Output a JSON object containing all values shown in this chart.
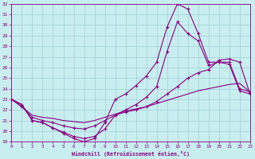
{
  "bg_color": "#c8eef0",
  "line_color": "#880080",
  "xlabel": "Windchill (Refroidissement éolien,°C)",
  "xlim": [
    0,
    23
  ],
  "ylim": [
    19,
    32
  ],
  "xticks": [
    0,
    1,
    2,
    3,
    4,
    5,
    6,
    7,
    8,
    9,
    10,
    11,
    12,
    13,
    14,
    15,
    16,
    17,
    18,
    19,
    20,
    21,
    22,
    23
  ],
  "yticks": [
    19,
    20,
    21,
    22,
    23,
    24,
    25,
    26,
    27,
    28,
    29,
    30,
    31,
    32
  ],
  "line1_x": [
    0,
    1,
    2,
    3,
    4,
    5,
    6,
    7,
    8,
    9,
    10,
    11,
    12,
    13,
    14,
    15,
    16,
    17,
    18,
    19,
    20,
    21,
    22,
    23
  ],
  "line1_y": [
    23.0,
    22.5,
    21.0,
    20.8,
    20.3,
    19.8,
    19.3,
    19.0,
    19.3,
    20.8,
    23.0,
    23.5,
    24.3,
    25.2,
    26.5,
    29.8,
    32.0,
    31.5,
    29.2,
    26.5,
    26.5,
    26.5,
    24.0,
    23.7
  ],
  "line2_x": [
    0,
    1,
    2,
    3,
    4,
    5,
    6,
    7,
    8,
    9,
    10,
    11,
    12,
    13,
    14,
    15,
    16,
    17,
    18,
    19,
    20,
    21,
    22,
    23
  ],
  "line2_y": [
    23.0,
    22.5,
    21.0,
    20.8,
    20.3,
    19.9,
    19.5,
    19.3,
    19.5,
    20.2,
    21.5,
    22.0,
    22.5,
    23.2,
    24.2,
    27.5,
    30.3,
    29.2,
    28.5,
    26.2,
    26.5,
    26.3,
    23.8,
    23.5
  ],
  "line3_x": [
    0,
    1,
    2,
    3,
    4,
    5,
    6,
    7,
    8,
    9,
    10,
    11,
    12,
    13,
    14,
    15,
    16,
    17,
    18,
    19,
    20,
    21,
    22,
    23
  ],
  "line3_y": [
    23.0,
    22.3,
    21.3,
    21.0,
    20.8,
    20.5,
    20.3,
    20.2,
    20.5,
    21.0,
    21.5,
    21.8,
    22.0,
    22.3,
    22.8,
    23.5,
    24.2,
    25.0,
    25.5,
    25.8,
    26.7,
    26.8,
    26.5,
    23.5
  ],
  "line4_x": [
    0,
    1,
    2,
    3,
    4,
    5,
    6,
    7,
    8,
    9,
    10,
    11,
    12,
    13,
    14,
    15,
    16,
    17,
    18,
    19,
    20,
    21,
    22,
    23
  ],
  "line4_y": [
    23.0,
    22.3,
    21.5,
    21.3,
    21.2,
    21.0,
    20.9,
    20.8,
    21.0,
    21.3,
    21.6,
    21.9,
    22.1,
    22.3,
    22.6,
    22.9,
    23.2,
    23.5,
    23.8,
    24.0,
    24.2,
    24.4,
    24.5,
    23.7
  ]
}
